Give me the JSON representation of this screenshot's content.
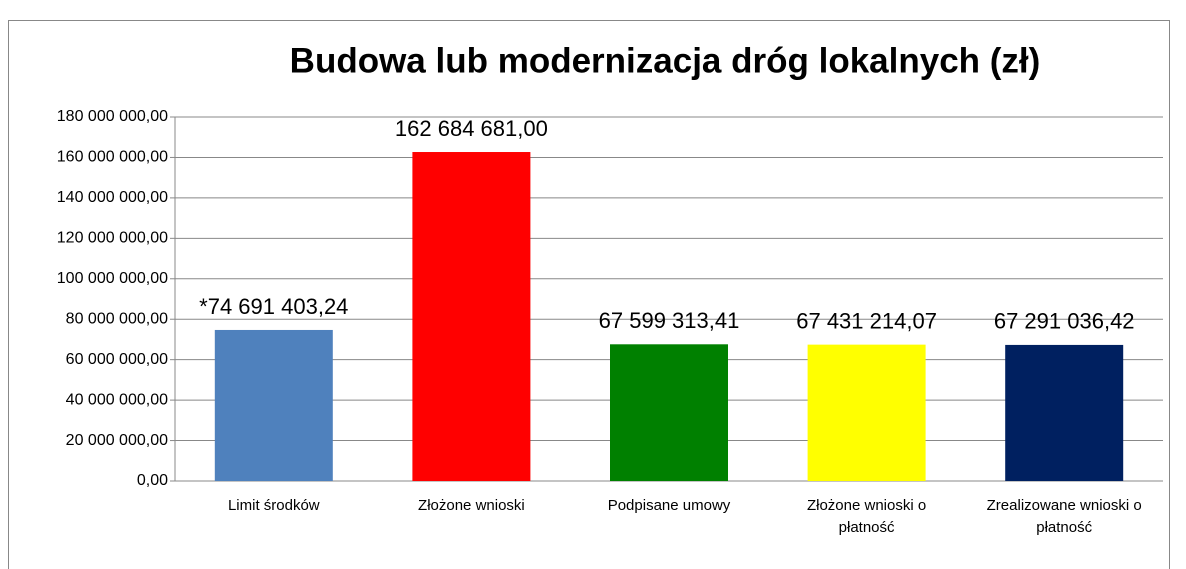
{
  "chart_data": {
    "type": "bar",
    "title": "Budowa lub modernizacja dróg lokalnych (zł)",
    "categories": [
      "Limit środków",
      "Złożone wnioski",
      "Podpisane umowy",
      "Złożone wnioski o płatność",
      "Zrealizowane wnioski o płatność"
    ],
    "values": [
      74691403.24,
      162684681.0,
      67599313.41,
      67431214.07,
      67291036.42
    ],
    "value_labels": [
      "*74 691 403,24",
      "162 684 681,00",
      "67 599 313,41",
      "67 431 214,07",
      "67 291 036,42"
    ],
    "colors": [
      "#4f81bd",
      "#ff0000",
      "#008000",
      "#ffff00",
      "#002060"
    ],
    "ylim": [
      0,
      180000000
    ],
    "yticks": [
      {
        "value": 0,
        "label": "0,00"
      },
      {
        "value": 20000000,
        "label": "20 000 000,00"
      },
      {
        "value": 40000000,
        "label": "40 000 000,00"
      },
      {
        "value": 60000000,
        "label": "60 000 000,00"
      },
      {
        "value": 80000000,
        "label": "80 000 000,00"
      },
      {
        "value": 100000000,
        "label": "100 000 000,00"
      },
      {
        "value": 120000000,
        "label": "120 000 000,00"
      },
      {
        "value": 140000000,
        "label": "140 000 000,00"
      },
      {
        "value": 160000000,
        "label": "160 000 000,00"
      },
      {
        "value": 180000000,
        "label": "180 000 000,00"
      }
    ],
    "grid": true
  }
}
